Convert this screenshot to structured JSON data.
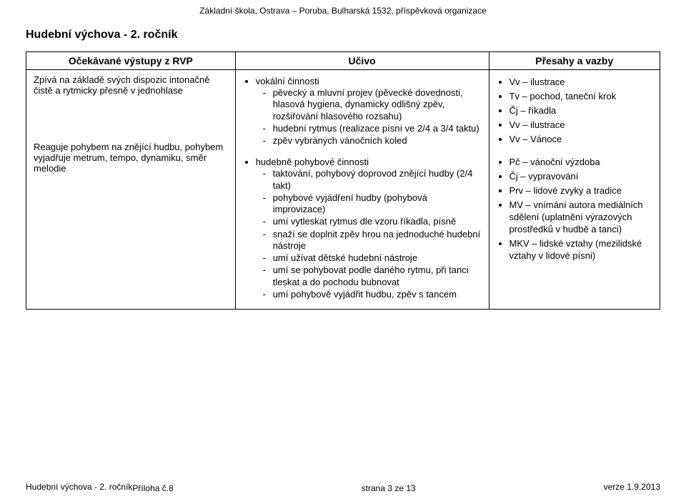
{
  "header": {
    "school": "Základní škola, Ostrava – Poruba, Bulharská 1532, příspěvková organizace",
    "title": "Hudební výchova - 2. ročník"
  },
  "table": {
    "columns": [
      "Očekávané výstupy z RVP",
      "Učivo",
      "Přesahy a vazby"
    ],
    "left": {
      "block1": "Zpívá na základě svých dispozic intonačně čistě a rytmicky přesně v jednohlase",
      "block2": "Reaguje pohybem na znějící hudbu, pohybem vyjadřuje metrum, tempo, dynamiku, směr melodie"
    },
    "mid": {
      "group1": {
        "label": "vokální činnosti",
        "items": [
          "pěvecký a mluvní projev (pěvecké dovednosti, hlasová hygiena, dynamicky odlišný zpěv, rozšiřování hlasového rozsahu)",
          "hudební rytmus (realizace písní ve 2/4 a 3/4 taktu)",
          "zpěv vybraných vánočních koled"
        ]
      },
      "group2": {
        "label": "hudebně pohybové činnosti",
        "items": [
          "taktování, pohybový doprovod znějící hudby (2/4 takt)",
          "pohybové vyjádření hudby (pohybová improvizace)",
          "umí vytleskat rytmus dle vzoru říkadla, písně",
          "snaží se doplnit zpěv hrou na jednoduché hudební nástroje",
          "umí užívat dětské hudební nástroje",
          "umí se pohybovat podle daného rytmu, při tanci tleskat a do pochodu bubnovat",
          "umí pohybově vyjádřit hudbu, zpěv s tancem"
        ]
      }
    },
    "right": {
      "items1": [
        "Vv – ilustrace",
        "Tv – pochod, taneční krok",
        "Čj – říkadla",
        "Vv – ilustrace",
        "Vv – Vánoce"
      ],
      "items2": [
        {
          "text": "Pč – vánoční výzdoba"
        },
        {
          "text": "Čj – vypravování"
        },
        {
          "text": "Prv – lidové zvyky a tradice"
        },
        {
          "text": "MV – vnímání autora mediálních sdělení (uplatnění výrazových prostředků v hudbě a tanci)"
        },
        {
          "text": "MKV – lidské vztahy (mezilidské vztahy v lidové písni)"
        }
      ]
    }
  },
  "footer": {
    "left1": "Hudební výchova - 2. ročník",
    "left2": "Příloha č.8",
    "center": "strana 3 ze 13",
    "right": "verze 1.9.2013"
  }
}
